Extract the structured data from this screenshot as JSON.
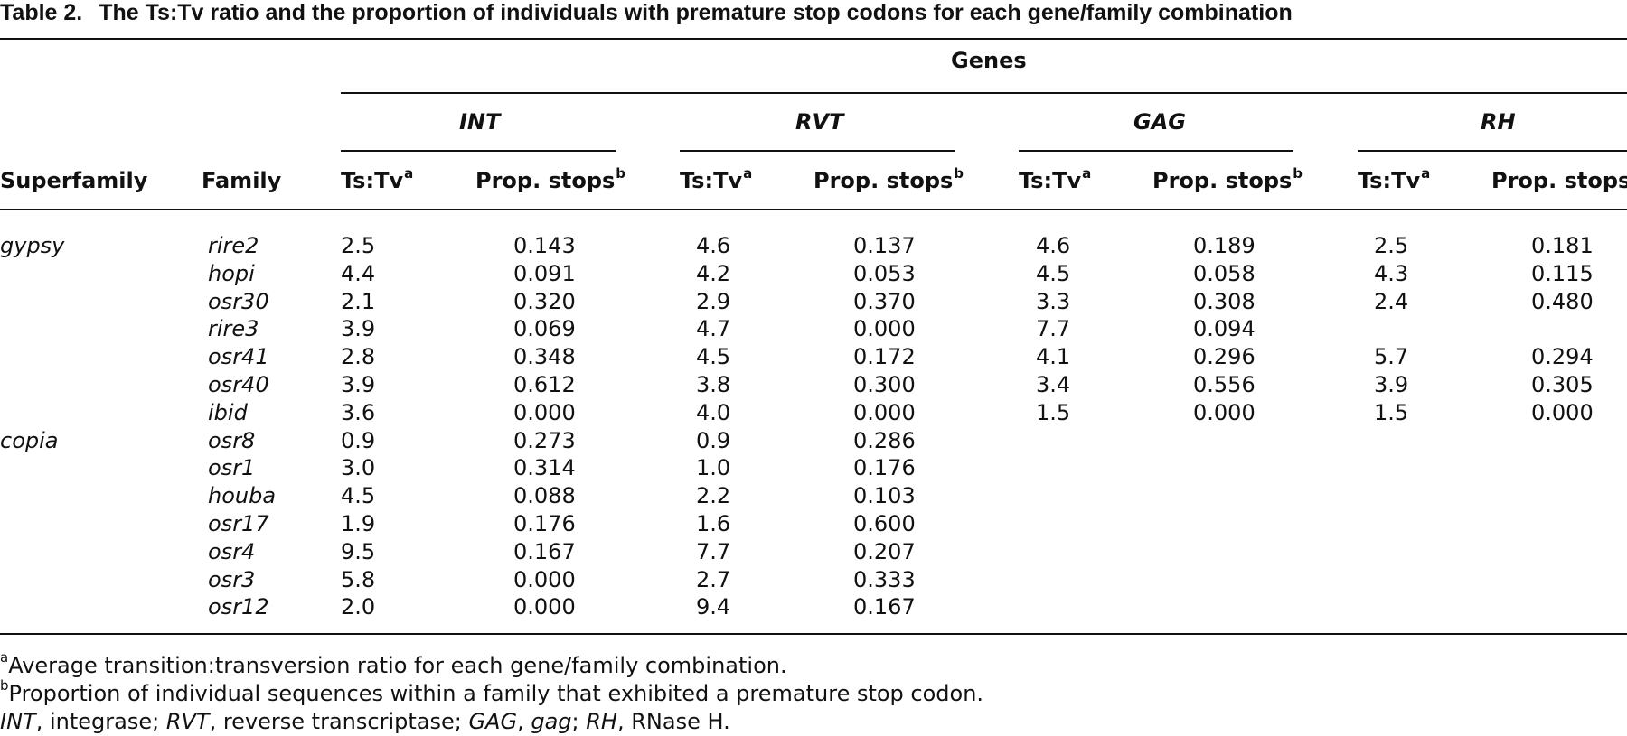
{
  "title": {
    "label": "Table 2.",
    "text": "The Ts:Tv ratio and the proportion of individuals with premature stop codons for each gene/family combination"
  },
  "header": {
    "genes": "Genes",
    "superfamily": "Superfamily",
    "family": "Family",
    "gene_groups": [
      "INT",
      "RVT",
      "GAG",
      "RH"
    ],
    "tstv": "Ts:Tv",
    "tstv_sup": "a",
    "prop": "Prop. stops",
    "prop_sup": "b"
  },
  "rows": [
    {
      "superfamily": "gypsy",
      "family": "rire2",
      "vals": [
        "2.5",
        "0.143",
        "4.6",
        "0.137",
        "4.6",
        "0.189",
        "2.5",
        "0.181"
      ]
    },
    {
      "superfamily": "",
      "family": "hopi",
      "vals": [
        "4.4",
        "0.091",
        "4.2",
        "0.053",
        "4.5",
        "0.058",
        "4.3",
        "0.115"
      ]
    },
    {
      "superfamily": "",
      "family": "osr30",
      "vals": [
        "2.1",
        "0.320",
        "2.9",
        "0.370",
        "3.3",
        "0.308",
        "2.4",
        "0.480"
      ]
    },
    {
      "superfamily": "",
      "family": "rire3",
      "vals": [
        "3.9",
        "0.069",
        "4.7",
        "0.000",
        "7.7",
        "0.094",
        "",
        ""
      ]
    },
    {
      "superfamily": "",
      "family": "osr41",
      "vals": [
        "2.8",
        "0.348",
        "4.5",
        "0.172",
        "4.1",
        "0.296",
        "5.7",
        "0.294"
      ]
    },
    {
      "superfamily": "",
      "family": "osr40",
      "vals": [
        "3.9",
        "0.612",
        "3.8",
        "0.300",
        "3.4",
        "0.556",
        "3.9",
        "0.305"
      ]
    },
    {
      "superfamily": "",
      "family": "ibid",
      "vals": [
        "3.6",
        "0.000",
        "4.0",
        "0.000",
        "1.5",
        "0.000",
        "1.5",
        "0.000"
      ]
    },
    {
      "superfamily": "copia",
      "family": "osr8",
      "vals": [
        "0.9",
        "0.273",
        "0.9",
        "0.286",
        "",
        "",
        "",
        ""
      ]
    },
    {
      "superfamily": "",
      "family": "osr1",
      "vals": [
        "3.0",
        "0.314",
        "1.0",
        "0.176",
        "",
        "",
        "",
        ""
      ]
    },
    {
      "superfamily": "",
      "family": "houba",
      "vals": [
        "4.5",
        "0.088",
        "2.2",
        "0.103",
        "",
        "",
        "",
        ""
      ]
    },
    {
      "superfamily": "",
      "family": "osr17",
      "vals": [
        "1.9",
        "0.176",
        "1.6",
        "0.600",
        "",
        "",
        "",
        ""
      ]
    },
    {
      "superfamily": "",
      "family": "osr4",
      "vals": [
        "9.5",
        "0.167",
        "7.7",
        "0.207",
        "",
        "",
        "",
        ""
      ]
    },
    {
      "superfamily": "",
      "family": "osr3",
      "vals": [
        "5.8",
        "0.000",
        "2.7",
        "0.333",
        "",
        "",
        "",
        ""
      ]
    },
    {
      "superfamily": "",
      "family": "osr12",
      "vals": [
        "2.0",
        "0.000",
        "9.4",
        "0.167",
        "",
        "",
        "",
        ""
      ]
    }
  ],
  "footnotes": {
    "a_mark": "a",
    "a_text": "Average transition:transversion ratio for each gene/family combination.",
    "b_mark": "b",
    "b_text": "Proportion of individual sequences within a family that exhibited a premature stop codon.",
    "abbrev": [
      {
        "term": "INT",
        "def": ", integrase; "
      },
      {
        "term": "RVT",
        "def": ", reverse transcriptase; "
      },
      {
        "term": "GAG",
        "def": ", "
      },
      {
        "term": "gag",
        "def": "; "
      },
      {
        "term": "RH",
        "def": ", RNase H."
      }
    ]
  }
}
